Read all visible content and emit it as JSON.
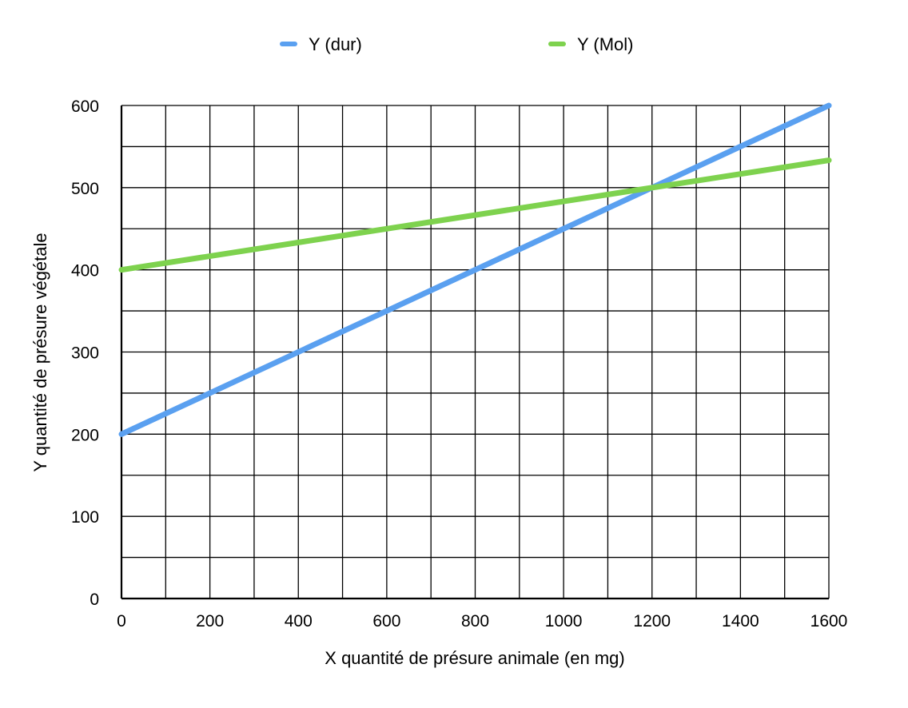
{
  "chart_data": {
    "type": "line",
    "title": "",
    "xlabel": "X quantité de présure animale (en mg)",
    "ylabel": "Y quantité de présure végétale",
    "xlim": [
      0,
      1600
    ],
    "ylim": [
      0,
      600
    ],
    "x_ticks": [
      0,
      200,
      400,
      600,
      800,
      1000,
      1200,
      1400,
      1600
    ],
    "x_tick_labels": [
      "0",
      "200",
      "400",
      "600",
      "800",
      "1000",
      "1200",
      "1400",
      "1600"
    ],
    "y_ticks": [
      0,
      100,
      200,
      300,
      400,
      500,
      600
    ],
    "y_tick_labels": [
      "0",
      "100",
      "200",
      "300",
      "400",
      "500",
      "600"
    ],
    "x_grid_step": 100,
    "y_grid_step": 50,
    "grid": true,
    "legend_position": "top",
    "series": [
      {
        "name": "Y (dur)",
        "color": "#5aa0f0",
        "x": [
          0,
          1600
        ],
        "values": [
          200,
          600
        ]
      },
      {
        "name": "Y (Mol)",
        "color": "#7ed24e",
        "x": [
          0,
          1600
        ],
        "values": [
          400,
          533.3
        ]
      }
    ]
  }
}
